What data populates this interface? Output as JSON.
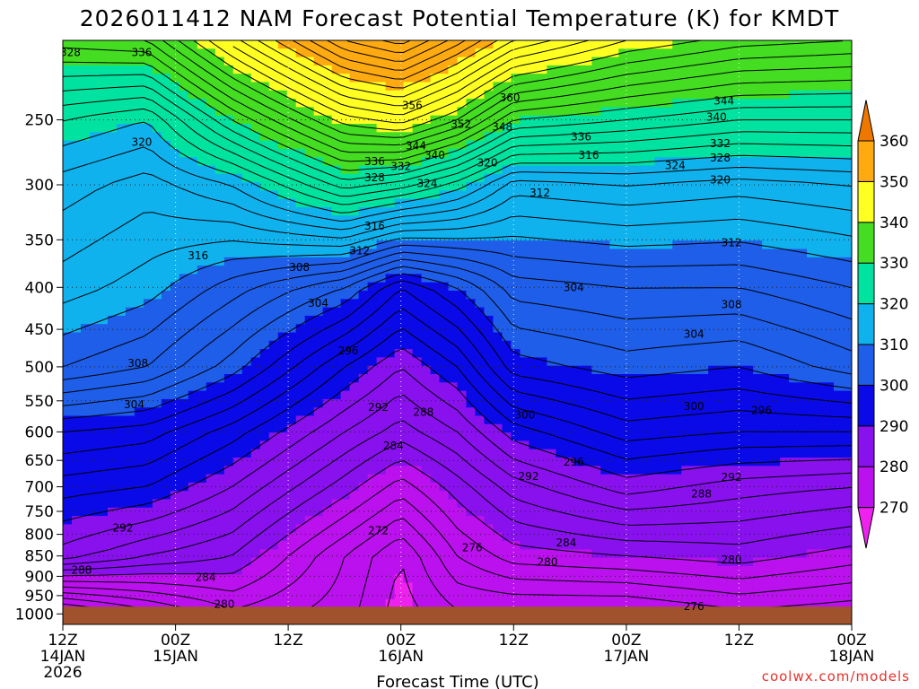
{
  "chart_data": {
    "type": "contour",
    "title": "2026011412 NAM Forecast Potential Temperature (K) for KMDT",
    "xlabel": "Forecast Time (UTC)",
    "ylabel": "",
    "y_axis": {
      "scale": "log",
      "reversed": true,
      "ylim": [
        200,
        1030
      ],
      "ticks": [
        250,
        300,
        350,
        400,
        450,
        500,
        550,
        600,
        650,
        700,
        750,
        800,
        850,
        900,
        950,
        1000
      ]
    },
    "x_axis": {
      "xlim_hours": [
        0,
        84
      ],
      "ticks": [
        {
          "hour": 0,
          "label": "12Z",
          "date": "14JAN",
          "year": "2026"
        },
        {
          "hour": 12,
          "label": "00Z",
          "date": "15JAN",
          "year": ""
        },
        {
          "hour": 24,
          "label": "12Z",
          "date": "",
          "year": ""
        },
        {
          "hour": 36,
          "label": "00Z",
          "date": "16JAN",
          "year": ""
        },
        {
          "hour": 48,
          "label": "12Z",
          "date": "",
          "year": ""
        },
        {
          "hour": 60,
          "label": "00Z",
          "date": "17JAN",
          "year": ""
        },
        {
          "hour": 72,
          "label": "12Z",
          "date": "",
          "year": ""
        },
        {
          "hour": 84,
          "label": "00Z",
          "date": "18JAN",
          "year": ""
        }
      ]
    },
    "grid": "dotted",
    "colorbar": {
      "placement": "right",
      "labels": [
        360,
        350,
        340,
        330,
        320,
        310,
        300,
        290,
        280,
        270
      ],
      "bands": [
        {
          "from": 260,
          "to": 270,
          "color": "#ee22ee"
        },
        {
          "from": 270,
          "to": 280,
          "color": "#bb11ee"
        },
        {
          "from": 280,
          "to": 290,
          "color": "#8811ee"
        },
        {
          "from": 290,
          "to": 300,
          "color": "#0a0ae8"
        },
        {
          "from": 300,
          "to": 310,
          "color": "#1e5ee8"
        },
        {
          "from": 310,
          "to": 320,
          "color": "#10b2ee"
        },
        {
          "from": 320,
          "to": 330,
          "color": "#00e3a0"
        },
        {
          "from": 330,
          "to": 340,
          "color": "#44dd22"
        },
        {
          "from": 340,
          "to": 350,
          "color": "#ffff22"
        },
        {
          "from": 350,
          "to": 360,
          "color": "#ffaa11"
        },
        {
          "from": 360,
          "to": 370,
          "color": "#ee7700"
        }
      ]
    },
    "contour_interval": 2,
    "ground_color": "#a0522d",
    "profiles": [
      {
        "hour": 0,
        "points": [
          [
            988,
            268
          ],
          [
            850,
            287
          ],
          [
            700,
            293
          ],
          [
            600,
            298
          ],
          [
            500,
            308
          ],
          [
            400,
            313
          ],
          [
            300,
            317
          ],
          [
            250,
            322
          ],
          [
            200,
            333
          ]
        ]
      },
      {
        "hour": 9,
        "points": [
          [
            988,
            272
          ],
          [
            850,
            284
          ],
          [
            700,
            292
          ],
          [
            600,
            297
          ],
          [
            500,
            306
          ],
          [
            400,
            311
          ],
          [
            300,
            315
          ],
          [
            250,
            320
          ],
          [
            200,
            334
          ]
        ]
      },
      {
        "hour": 18,
        "points": [
          [
            988,
            276
          ],
          [
            850,
            282
          ],
          [
            700,
            288
          ],
          [
            600,
            293
          ],
          [
            500,
            301
          ],
          [
            400,
            307
          ],
          [
            300,
            318
          ],
          [
            250,
            330
          ],
          [
            200,
            345
          ]
        ]
      },
      {
        "hour": 30,
        "points": [
          [
            988,
            273
          ],
          [
            850,
            274
          ],
          [
            700,
            281
          ],
          [
            600,
            286
          ],
          [
            500,
            292
          ],
          [
            400,
            302
          ],
          [
            300,
            327
          ],
          [
            250,
            341
          ],
          [
            200,
            358
          ]
        ]
      },
      {
        "hour": 36,
        "points": [
          [
            988,
            269
          ],
          [
            850,
            270
          ],
          [
            700,
            277
          ],
          [
            600,
            283
          ],
          [
            500,
            288
          ],
          [
            400,
            296
          ],
          [
            300,
            325
          ],
          [
            250,
            343
          ],
          [
            200,
            361
          ]
        ]
      },
      {
        "hour": 42,
        "points": [
          [
            988,
            272
          ],
          [
            850,
            276
          ],
          [
            700,
            281
          ],
          [
            600,
            286
          ],
          [
            500,
            292
          ],
          [
            400,
            300
          ],
          [
            300,
            321
          ],
          [
            250,
            338
          ],
          [
            200,
            355
          ]
        ]
      },
      {
        "hour": 48,
        "points": [
          [
            988,
            272
          ],
          [
            850,
            279
          ],
          [
            700,
            285
          ],
          [
            600,
            291
          ],
          [
            500,
            299
          ],
          [
            400,
            305
          ],
          [
            300,
            315
          ],
          [
            250,
            330
          ],
          [
            200,
            348
          ]
        ]
      },
      {
        "hour": 60,
        "points": [
          [
            988,
            272
          ],
          [
            850,
            280
          ],
          [
            700,
            289
          ],
          [
            600,
            295
          ],
          [
            500,
            301
          ],
          [
            400,
            306
          ],
          [
            300,
            316
          ],
          [
            250,
            328
          ],
          [
            200,
            342
          ]
        ]
      },
      {
        "hour": 72,
        "points": [
          [
            988,
            274
          ],
          [
            850,
            281
          ],
          [
            700,
            287
          ],
          [
            600,
            294
          ],
          [
            500,
            300
          ],
          [
            400,
            306
          ],
          [
            300,
            315
          ],
          [
            250,
            326
          ],
          [
            200,
            339
          ]
        ]
      },
      {
        "hour": 84,
        "points": [
          [
            988,
            273
          ],
          [
            850,
            279
          ],
          [
            700,
            286
          ],
          [
            600,
            294
          ],
          [
            500,
            303
          ],
          [
            400,
            308
          ],
          [
            300,
            316
          ],
          [
            250,
            326
          ],
          [
            200,
            338
          ]
        ]
      }
    ],
    "contour_labels": [
      {
        "hour": 0.8,
        "p": 207,
        "value": 328
      },
      {
        "hour": 8.4,
        "p": 207,
        "value": 336
      },
      {
        "hour": 8.4,
        "p": 266,
        "value": 320
      },
      {
        "hour": 14.4,
        "p": 366,
        "value": 316
      },
      {
        "hour": 8.0,
        "p": 495,
        "value": 308
      },
      {
        "hour": 7.6,
        "p": 556,
        "value": 304
      },
      {
        "hour": 6.4,
        "p": 786,
        "value": 292
      },
      {
        "hour": 2.0,
        "p": 885,
        "value": 288
      },
      {
        "hour": 15.2,
        "p": 902,
        "value": 284
      },
      {
        "hour": 17.2,
        "p": 973,
        "value": 280
      },
      {
        "hour": 25.2,
        "p": 378,
        "value": 308
      },
      {
        "hour": 27.2,
        "p": 418,
        "value": 304
      },
      {
        "hour": 30.4,
        "p": 478,
        "value": 296
      },
      {
        "hour": 33.6,
        "p": 560,
        "value": 292
      },
      {
        "hour": 38.4,
        "p": 568,
        "value": 288
      },
      {
        "hour": 35.2,
        "p": 624,
        "value": 284
      },
      {
        "hour": 33.6,
        "p": 792,
        "value": 272
      },
      {
        "hour": 43.6,
        "p": 830,
        "value": 276
      },
      {
        "hour": 47.6,
        "p": 235,
        "value": 360
      },
      {
        "hour": 37.2,
        "p": 240,
        "value": 356
      },
      {
        "hour": 42.4,
        "p": 253,
        "value": 352
      },
      {
        "hour": 46.8,
        "p": 255,
        "value": 348
      },
      {
        "hour": 37.6,
        "p": 269,
        "value": 344
      },
      {
        "hour": 39.6,
        "p": 276,
        "value": 340
      },
      {
        "hour": 33.2,
        "p": 281,
        "value": 336
      },
      {
        "hour": 36.0,
        "p": 285,
        "value": 332
      },
      {
        "hour": 33.2,
        "p": 294,
        "value": 328
      },
      {
        "hour": 38.8,
        "p": 299,
        "value": 324
      },
      {
        "hour": 33.2,
        "p": 337,
        "value": 316
      },
      {
        "hour": 31.6,
        "p": 361,
        "value": 312
      },
      {
        "hour": 45.2,
        "p": 282,
        "value": 320
      },
      {
        "hour": 56.0,
        "p": 276,
        "value": 316
      },
      {
        "hour": 50.8,
        "p": 307,
        "value": 312
      },
      {
        "hour": 54.4,
        "p": 400,
        "value": 304
      },
      {
        "hour": 49.2,
        "p": 572,
        "value": 300
      },
      {
        "hour": 54.4,
        "p": 653,
        "value": 296
      },
      {
        "hour": 49.6,
        "p": 680,
        "value": 292
      },
      {
        "hour": 53.6,
        "p": 819,
        "value": 284
      },
      {
        "hour": 51.6,
        "p": 865,
        "value": 280
      },
      {
        "hour": 55.2,
        "p": 262,
        "value": 336
      },
      {
        "hour": 70.4,
        "p": 237,
        "value": 344
      },
      {
        "hour": 69.6,
        "p": 248,
        "value": 340
      },
      {
        "hour": 70.0,
        "p": 267,
        "value": 332
      },
      {
        "hour": 70.0,
        "p": 278,
        "value": 328
      },
      {
        "hour": 65.2,
        "p": 284,
        "value": 324
      },
      {
        "hour": 70.0,
        "p": 296,
        "value": 320
      },
      {
        "hour": 71.2,
        "p": 353,
        "value": 312
      },
      {
        "hour": 71.2,
        "p": 420,
        "value": 308
      },
      {
        "hour": 67.2,
        "p": 456,
        "value": 304
      },
      {
        "hour": 67.2,
        "p": 559,
        "value": 300
      },
      {
        "hour": 74.4,
        "p": 565,
        "value": 296
      },
      {
        "hour": 71.2,
        "p": 682,
        "value": 292
      },
      {
        "hour": 68.0,
        "p": 714,
        "value": 288
      },
      {
        "hour": 71.2,
        "p": 859,
        "value": 280
      },
      {
        "hour": 67.2,
        "p": 980,
        "value": 276
      }
    ]
  },
  "credit": "coolwx.com/models"
}
